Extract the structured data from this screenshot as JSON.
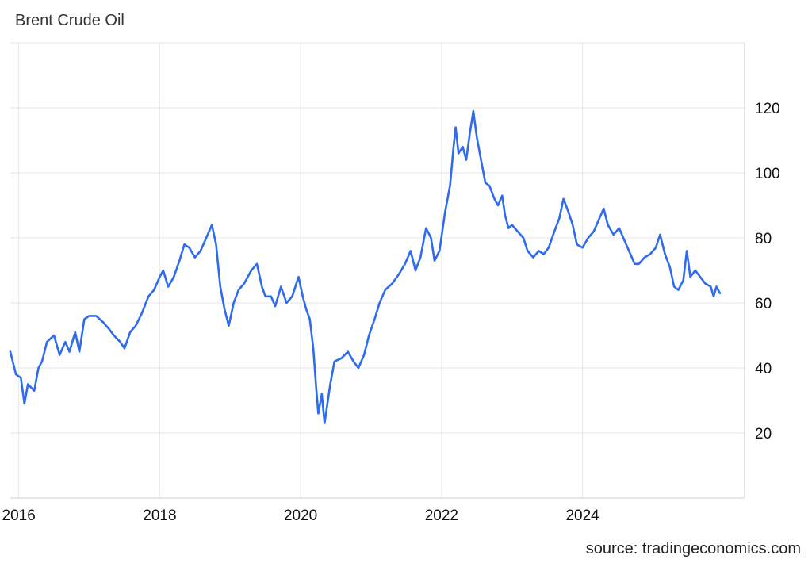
{
  "chart_data": {
    "type": "line",
    "title": "Brent Crude Oil",
    "source": "source: tradingeconomics.com",
    "xlabel": "",
    "ylabel": "",
    "xlim": [
      2015.88,
      2026.3
    ],
    "ylim": [
      0,
      140
    ],
    "x_ticks": [
      2016,
      2018,
      2020,
      2022,
      2024
    ],
    "x_tick_labels": [
      "2016",
      "2018",
      "2020",
      "2022",
      "2024"
    ],
    "y_ticks": [
      20,
      40,
      60,
      80,
      100,
      120
    ],
    "y_tick_labels": [
      "20",
      "40",
      "60",
      "80",
      "100",
      "120"
    ],
    "grid": true,
    "line_color": "#2f6bef",
    "series": [
      {
        "name": "",
        "points": [
          [
            2015.88,
            45
          ],
          [
            2015.96,
            38
          ],
          [
            2016.03,
            37
          ],
          [
            2016.08,
            29
          ],
          [
            2016.13,
            35
          ],
          [
            2016.22,
            33
          ],
          [
            2016.28,
            40
          ],
          [
            2016.33,
            42
          ],
          [
            2016.4,
            48
          ],
          [
            2016.5,
            50
          ],
          [
            2016.58,
            44
          ],
          [
            2016.66,
            48
          ],
          [
            2016.72,
            45
          ],
          [
            2016.8,
            51
          ],
          [
            2016.86,
            45
          ],
          [
            2016.93,
            55
          ],
          [
            2017.0,
            56
          ],
          [
            2017.1,
            56
          ],
          [
            2017.2,
            54
          ],
          [
            2017.28,
            52
          ],
          [
            2017.35,
            50
          ],
          [
            2017.44,
            48
          ],
          [
            2017.5,
            46
          ],
          [
            2017.58,
            51
          ],
          [
            2017.66,
            53
          ],
          [
            2017.75,
            57
          ],
          [
            2017.84,
            62
          ],
          [
            2017.92,
            64
          ],
          [
            2018.0,
            68
          ],
          [
            2018.05,
            70
          ],
          [
            2018.12,
            65
          ],
          [
            2018.2,
            68
          ],
          [
            2018.28,
            73
          ],
          [
            2018.35,
            78
          ],
          [
            2018.42,
            77
          ],
          [
            2018.5,
            74
          ],
          [
            2018.58,
            76
          ],
          [
            2018.66,
            80
          ],
          [
            2018.74,
            84
          ],
          [
            2018.8,
            78
          ],
          [
            2018.86,
            65
          ],
          [
            2018.92,
            58
          ],
          [
            2018.98,
            53
          ],
          [
            2019.05,
            60
          ],
          [
            2019.12,
            64
          ],
          [
            2019.2,
            66
          ],
          [
            2019.3,
            70
          ],
          [
            2019.38,
            72
          ],
          [
            2019.45,
            65
          ],
          [
            2019.5,
            62
          ],
          [
            2019.58,
            62
          ],
          [
            2019.64,
            59
          ],
          [
            2019.72,
            65
          ],
          [
            2019.8,
            60
          ],
          [
            2019.88,
            62
          ],
          [
            2019.97,
            68
          ],
          [
            2020.03,
            62
          ],
          [
            2020.08,
            58
          ],
          [
            2020.13,
            55
          ],
          [
            2020.18,
            46
          ],
          [
            2020.22,
            34
          ],
          [
            2020.25,
            26
          ],
          [
            2020.3,
            32
          ],
          [
            2020.34,
            23
          ],
          [
            2020.38,
            29
          ],
          [
            2020.42,
            35
          ],
          [
            2020.48,
            42
          ],
          [
            2020.58,
            43
          ],
          [
            2020.67,
            45
          ],
          [
            2020.75,
            42
          ],
          [
            2020.82,
            40
          ],
          [
            2020.9,
            44
          ],
          [
            2020.97,
            50
          ],
          [
            2021.05,
            55
          ],
          [
            2021.12,
            60
          ],
          [
            2021.2,
            64
          ],
          [
            2021.3,
            66
          ],
          [
            2021.4,
            69
          ],
          [
            2021.48,
            72
          ],
          [
            2021.56,
            76
          ],
          [
            2021.63,
            70
          ],
          [
            2021.7,
            74
          ],
          [
            2021.78,
            83
          ],
          [
            2021.85,
            80
          ],
          [
            2021.9,
            73
          ],
          [
            2021.97,
            76
          ],
          [
            2022.05,
            88
          ],
          [
            2022.12,
            96
          ],
          [
            2022.17,
            108
          ],
          [
            2022.2,
            114
          ],
          [
            2022.24,
            106
          ],
          [
            2022.3,
            108
          ],
          [
            2022.35,
            104
          ],
          [
            2022.4,
            112
          ],
          [
            2022.45,
            119
          ],
          [
            2022.5,
            111
          ],
          [
            2022.56,
            104
          ],
          [
            2022.62,
            97
          ],
          [
            2022.68,
            96
          ],
          [
            2022.75,
            92
          ],
          [
            2022.8,
            90
          ],
          [
            2022.86,
            93
          ],
          [
            2022.9,
            87
          ],
          [
            2022.95,
            83
          ],
          [
            2023.0,
            84
          ],
          [
            2023.08,
            82
          ],
          [
            2023.16,
            80
          ],
          [
            2023.22,
            76
          ],
          [
            2023.3,
            74
          ],
          [
            2023.38,
            76
          ],
          [
            2023.45,
            75
          ],
          [
            2023.52,
            77
          ],
          [
            2023.6,
            82
          ],
          [
            2023.67,
            86
          ],
          [
            2023.73,
            92
          ],
          [
            2023.8,
            88
          ],
          [
            2023.86,
            84
          ],
          [
            2023.92,
            78
          ],
          [
            2024.0,
            77
          ],
          [
            2024.08,
            80
          ],
          [
            2024.16,
            82
          ],
          [
            2024.24,
            86
          ],
          [
            2024.3,
            89
          ],
          [
            2024.36,
            84
          ],
          [
            2024.44,
            81
          ],
          [
            2024.52,
            83
          ],
          [
            2024.6,
            79
          ],
          [
            2024.68,
            75
          ],
          [
            2024.74,
            72
          ],
          [
            2024.8,
            72
          ],
          [
            2024.88,
            74
          ],
          [
            2024.96,
            75
          ],
          [
            2025.04,
            77
          ],
          [
            2025.1,
            81
          ],
          [
            2025.17,
            75
          ],
          [
            2025.24,
            71
          ],
          [
            2025.3,
            65
          ],
          [
            2025.36,
            64
          ],
          [
            2025.43,
            67
          ],
          [
            2025.48,
            76
          ],
          [
            2025.53,
            68
          ],
          [
            2025.6,
            70
          ],
          [
            2025.67,
            68
          ],
          [
            2025.74,
            66
          ],
          [
            2025.82,
            65
          ],
          [
            2025.86,
            62
          ],
          [
            2025.9,
            65
          ],
          [
            2025.95,
            63
          ]
        ]
      }
    ]
  }
}
